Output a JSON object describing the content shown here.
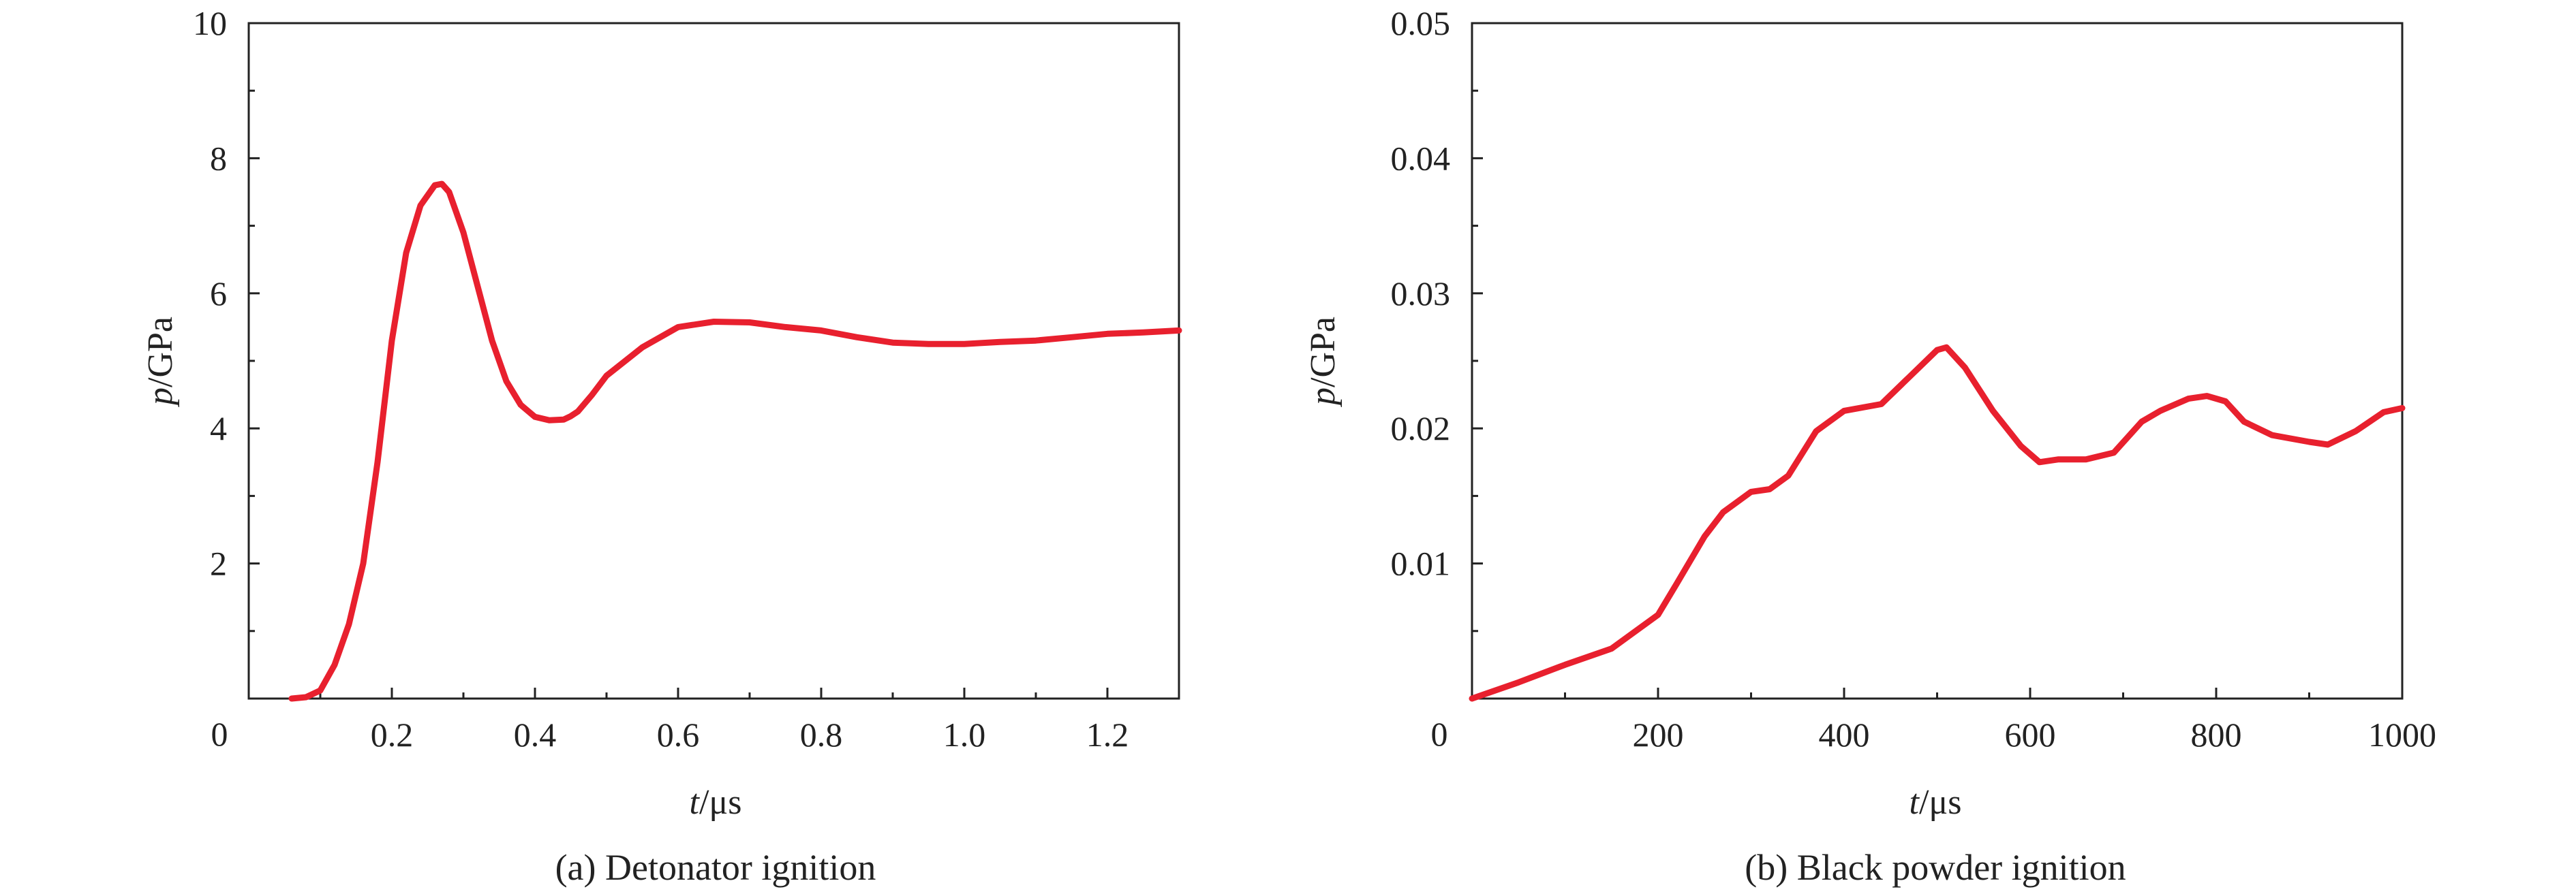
{
  "chart_data": [
    {
      "type": "line",
      "caption": "(a) Detonator ignition",
      "xlabel": {
        "var": "t",
        "unit": "/μs"
      },
      "ylabel": {
        "var": "p",
        "unit": "/GPa"
      },
      "xlim": [
        0,
        1.3
      ],
      "ylim": [
        0,
        10
      ],
      "x_ticks": [
        "0.2",
        "0.4",
        "0.6",
        "0.8",
        "1.0",
        "1.2"
      ],
      "x_tick_values": [
        0.2,
        0.4,
        0.6,
        0.8,
        1.0,
        1.2
      ],
      "y_ticks": [
        "2",
        "4",
        "6",
        "8",
        "10"
      ],
      "y_tick_values": [
        2,
        4,
        6,
        8,
        10
      ],
      "origin_label": "0",
      "grid": false,
      "line_color": "#e8202e",
      "series": [
        {
          "x": [
            0.06,
            0.08,
            0.1,
            0.12,
            0.14,
            0.16,
            0.18,
            0.2,
            0.22,
            0.24,
            0.26,
            0.27,
            0.28,
            0.3,
            0.32,
            0.34,
            0.36,
            0.38,
            0.4,
            0.42,
            0.44,
            0.45,
            0.46,
            0.48,
            0.5,
            0.55,
            0.6,
            0.65,
            0.7,
            0.75,
            0.8,
            0.85,
            0.9,
            0.95,
            1.0,
            1.05,
            1.1,
            1.15,
            1.2,
            1.25,
            1.3
          ],
          "y": [
            0.0,
            0.02,
            0.12,
            0.5,
            1.1,
            2.0,
            3.5,
            5.3,
            6.6,
            7.3,
            7.6,
            7.62,
            7.5,
            6.9,
            6.1,
            5.3,
            4.7,
            4.35,
            4.17,
            4.12,
            4.13,
            4.18,
            4.25,
            4.5,
            4.78,
            5.2,
            5.5,
            5.58,
            5.57,
            5.5,
            5.45,
            5.35,
            5.27,
            5.25,
            5.25,
            5.28,
            5.3,
            5.35,
            5.4,
            5.42,
            5.45
          ]
        }
      ]
    },
    {
      "type": "line",
      "caption": "(b) Black powder ignition",
      "xlabel": {
        "var": "t",
        "unit": "/μs"
      },
      "ylabel": {
        "var": "p",
        "unit": "/GPa"
      },
      "xlim": [
        0,
        1000
      ],
      "ylim": [
        0,
        0.05
      ],
      "x_ticks": [
        "200",
        "400",
        "600",
        "800",
        "1000"
      ],
      "x_tick_values": [
        200,
        400,
        600,
        800,
        1000
      ],
      "y_ticks": [
        "0.01",
        "0.02",
        "0.03",
        "0.04",
        "0.05"
      ],
      "y_tick_values": [
        0.01,
        0.02,
        0.03,
        0.04,
        0.05
      ],
      "origin_label": "0",
      "grid": false,
      "line_color": "#e8202e",
      "series": [
        {
          "x": [
            0,
            50,
            100,
            150,
            200,
            220,
            250,
            270,
            300,
            320,
            340,
            370,
            400,
            440,
            470,
            500,
            510,
            530,
            560,
            590,
            610,
            630,
            660,
            690,
            720,
            740,
            770,
            790,
            810,
            830,
            860,
            900,
            920,
            950,
            980,
            1000
          ],
          "y": [
            0.0,
            0.0012,
            0.0025,
            0.0037,
            0.0062,
            0.0085,
            0.012,
            0.0138,
            0.0153,
            0.0155,
            0.0165,
            0.0198,
            0.0213,
            0.0218,
            0.0238,
            0.0258,
            0.026,
            0.0245,
            0.0213,
            0.0187,
            0.0175,
            0.0177,
            0.0177,
            0.0182,
            0.0205,
            0.0213,
            0.0222,
            0.0224,
            0.022,
            0.0205,
            0.0195,
            0.019,
            0.0188,
            0.0198,
            0.0212,
            0.0215
          ]
        }
      ]
    }
  ]
}
